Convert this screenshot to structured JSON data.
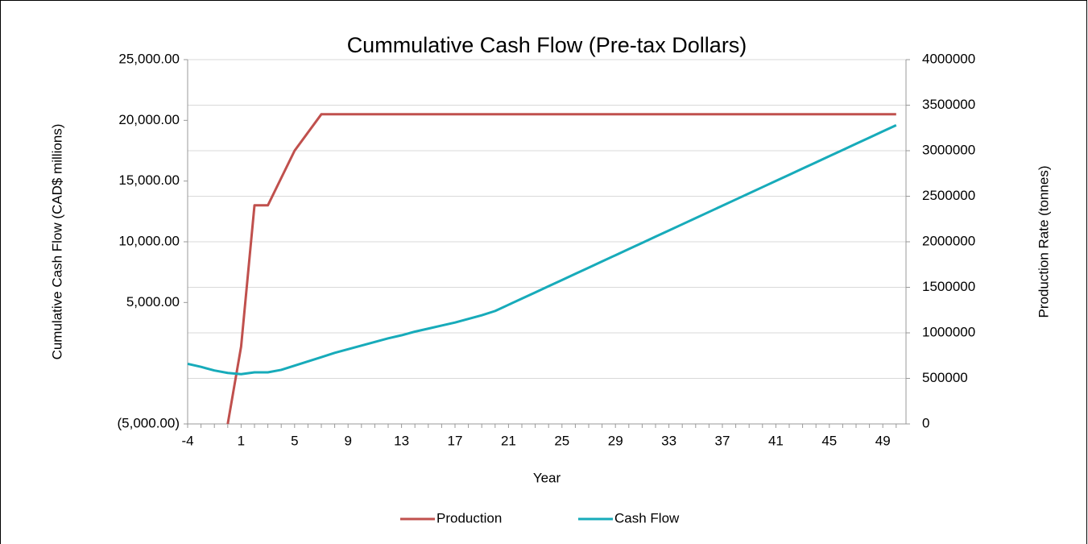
{
  "chart_data": {
    "type": "line",
    "title": "Cummulative Cash Flow (Pre-tax Dollars)",
    "xlabel": "Year",
    "ylabel": "Cumulative Cash Flow (CAD$ millions)",
    "y2label": "Production Rate (tonnes)",
    "categories": [
      -4,
      null,
      null,
      null,
      1,
      null,
      null,
      null,
      5,
      null,
      null,
      null,
      9,
      null,
      null,
      null,
      13,
      null,
      null,
      null,
      17,
      null,
      null,
      null,
      21,
      null,
      null,
      null,
      25,
      null,
      null,
      null,
      29,
      null,
      null,
      null,
      33,
      null,
      null,
      null,
      37,
      null,
      null,
      null,
      41,
      null,
      null,
      null,
      45,
      null,
      null,
      null,
      49,
      null
    ],
    "ylim": [
      -5000,
      25000
    ],
    "yticks": [
      {
        "value": -5000,
        "label": "(5,000.00)"
      },
      {
        "value": 5000,
        "label": "5,000.00"
      },
      {
        "value": 10000,
        "label": "10,000.00"
      },
      {
        "value": 15000,
        "label": "15,000.00"
      },
      {
        "value": 20000,
        "label": "20,000.00"
      },
      {
        "value": 25000,
        "label": "25,000.00"
      }
    ],
    "y2lim": [
      0,
      4000000
    ],
    "y2ticks": [
      0,
      500000,
      1000000,
      1500000,
      2000000,
      2500000,
      3000000,
      3500000,
      4000000
    ],
    "grid": true,
    "legend": "bottom",
    "series": [
      {
        "name": "Production",
        "color": "#c0504d",
        "axis": "y2",
        "values": [
          null,
          null,
          null,
          0,
          850000,
          2400000,
          2400000,
          2700000,
          3000000,
          3200000,
          3400000,
          3400000,
          3400000,
          3400000,
          3400000,
          3400000,
          3400000,
          3400000,
          3400000,
          3400000,
          3400000,
          3400000,
          3400000,
          3400000,
          3400000,
          3400000,
          3400000,
          3400000,
          3400000,
          3400000,
          3400000,
          3400000,
          3400000,
          3400000,
          3400000,
          3400000,
          3400000,
          3400000,
          3400000,
          3400000,
          3400000,
          3400000,
          3400000,
          3400000,
          3400000,
          3400000,
          3400000,
          3400000,
          3400000,
          3400000,
          3400000,
          3400000,
          3400000,
          3400000
        ]
      },
      {
        "name": "Cash Flow",
        "color": "#17abba",
        "values": [
          -50,
          -300,
          -600,
          -800,
          -900,
          -750,
          -750,
          -550,
          -200,
          150,
          500,
          850,
          1150,
          1450,
          1750,
          2050,
          2300,
          2600,
          2850,
          3100,
          3350,
          3650,
          3950,
          4300,
          4810,
          5320,
          5830,
          6340,
          6850,
          7360,
          7870,
          8380,
          8890,
          9400,
          9910,
          10420,
          10930,
          11440,
          11950,
          12460,
          12970,
          13480,
          13990,
          14500,
          15010,
          15520,
          16030,
          16540,
          17050,
          17560,
          18070,
          18580,
          19090,
          19600
        ]
      }
    ]
  }
}
